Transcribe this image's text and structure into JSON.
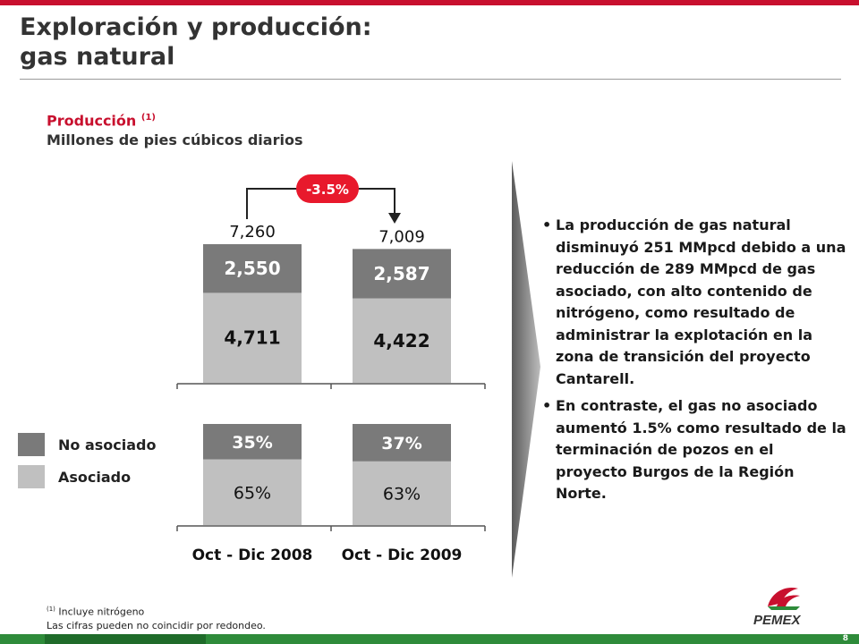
{
  "header": {
    "title_line1": "Exploración y producción:",
    "title_line2": "gas natural"
  },
  "subheader": {
    "label": "Producción",
    "label_note": "(1)",
    "units": "Millones de pies cúbicos diarios"
  },
  "change_badge": "-3.5%",
  "legend": [
    {
      "label": "No asociado",
      "color": "#7a7a7a"
    },
    {
      "label": "Asociado",
      "color": "#c0c0c0"
    }
  ],
  "chart_data": [
    {
      "type": "bar",
      "stacked": true,
      "categories": [
        "Oct - Dic 2008",
        "Oct - Dic 2009"
      ],
      "series": [
        {
          "name": "Asociado",
          "values": [
            4711,
            4422
          ],
          "labels": [
            "4,711",
            "4,422"
          ],
          "color": "#c0c0c0"
        },
        {
          "name": "No asociado",
          "values": [
            2550,
            2587
          ],
          "labels": [
            "2,550",
            "2,587"
          ],
          "color": "#7a7a7a"
        }
      ],
      "totals": [
        7260,
        7009
      ],
      "total_labels": [
        "7,260",
        "7,009"
      ]
    },
    {
      "type": "bar",
      "stacked": true,
      "percent": true,
      "categories": [
        "Oct - Dic 2008",
        "Oct - Dic 2009"
      ],
      "series": [
        {
          "name": "Asociado",
          "values": [
            65,
            63
          ],
          "labels": [
            "65%",
            "63%"
          ],
          "color": "#c0c0c0"
        },
        {
          "name": "No asociado",
          "values": [
            35,
            37
          ],
          "labels": [
            "35%",
            "37%"
          ],
          "color": "#7a7a7a"
        }
      ]
    }
  ],
  "bullets": [
    "La producción de gas natural disminuyó 251 MMpcd debido a una reducción de 289 MMpcd de gas asociado, con alto contenido de nitrógeno, como resultado de administrar la explotación en la zona de transición del proyecto Cantarell.",
    "En contraste, el gas no asociado aumentó 1.5% como resultado de la terminación de pozos en el proyecto Burgos de la Región Norte."
  ],
  "footnotes": {
    "note_mark": "(1)",
    "note1": "Incluye nitrógeno",
    "note2": "Las cifras pueden no coincidir por redondeo."
  },
  "logo_text": "PEMEX",
  "page_number": "8"
}
